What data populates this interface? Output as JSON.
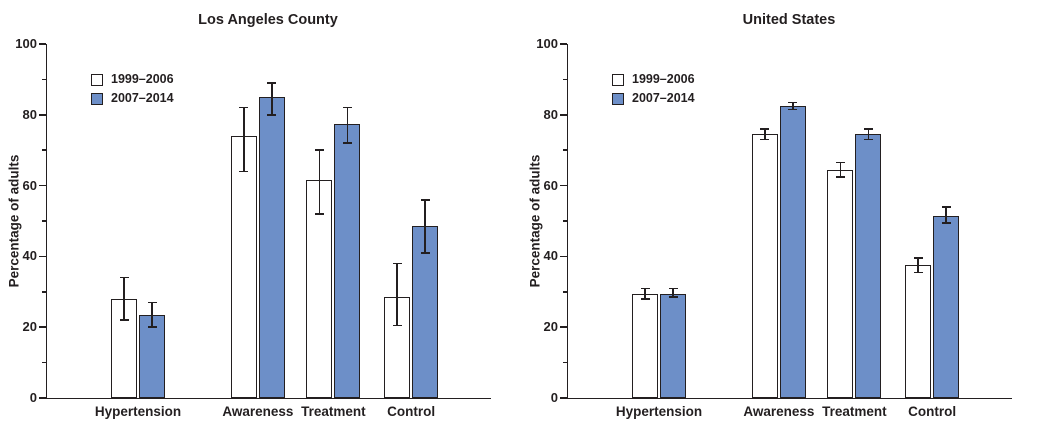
{
  "chart_data": [
    {
      "type": "bar",
      "title": "Los Angeles County",
      "ylabel": "Percentage of adults",
      "ylim": [
        0,
        100
      ],
      "yticks_major": [
        0,
        20,
        40,
        60,
        80,
        100
      ],
      "yticks_minor": [
        10,
        30,
        50,
        70,
        90
      ],
      "categories": [
        "Hypertension",
        "Awareness",
        "Treatment",
        "Control"
      ],
      "legend_position": "top-left",
      "grid": false,
      "bar_outline_color": "#231f20",
      "series": [
        {
          "name": "1999–2006",
          "color": "#ffffff",
          "values": [
            28,
            74,
            61.5,
            28.5
          ],
          "err_low": [
            22,
            64,
            52,
            20.5
          ],
          "err_high": [
            34,
            82,
            70,
            38
          ]
        },
        {
          "name": "2007–2014",
          "color": "#6d8fc8",
          "values": [
            23.5,
            85,
            77.5,
            48.5
          ],
          "err_low": [
            20,
            80,
            72,
            41
          ],
          "err_high": [
            27,
            89,
            82,
            56
          ]
        }
      ]
    },
    {
      "type": "bar",
      "title": "United States",
      "ylabel": "Percentage of adults",
      "ylim": [
        0,
        100
      ],
      "yticks_major": [
        0,
        20,
        40,
        60,
        80,
        100
      ],
      "yticks_minor": [
        10,
        30,
        50,
        70,
        90
      ],
      "categories": [
        "Hypertension",
        "Awareness",
        "Treatment",
        "Control"
      ],
      "legend_position": "top-left",
      "grid": false,
      "bar_outline_color": "#231f20",
      "series": [
        {
          "name": "1999–2006",
          "color": "#ffffff",
          "values": [
            29.5,
            74.5,
            64.5,
            37.5
          ],
          "err_low": [
            28,
            73,
            62.5,
            35.5
          ],
          "err_high": [
            31,
            76,
            66.5,
            39.5
          ]
        },
        {
          "name": "2007–2014",
          "color": "#6d8fc8",
          "values": [
            29.5,
            82.5,
            74.5,
            51.5
          ],
          "err_low": [
            28.5,
            81.5,
            73,
            49.5
          ],
          "err_high": [
            31,
            83.5,
            76,
            54
          ]
        }
      ]
    }
  ]
}
